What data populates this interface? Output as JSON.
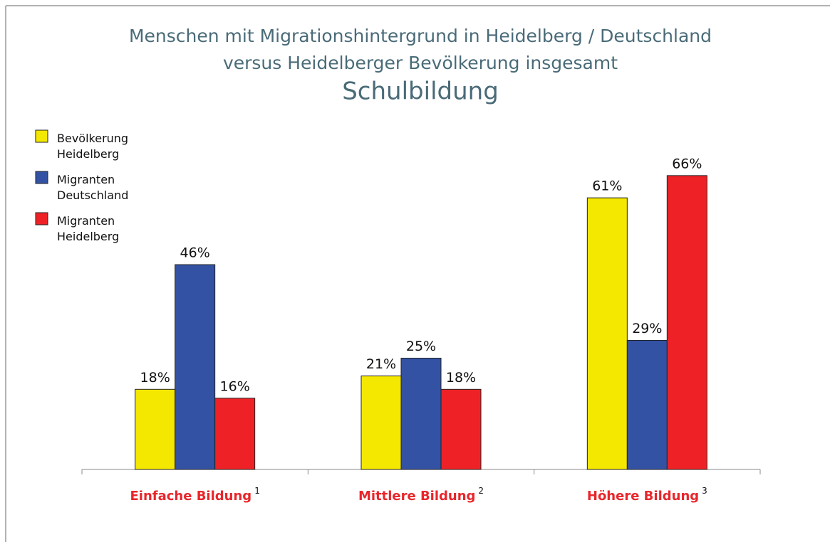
{
  "chart_data": {
    "type": "bar",
    "title": [
      "Menschen mit Migrationshintergrund in Heidelberg / Deutschland",
      "versus Heidelberger Bevölkerung insgesamt"
    ],
    "subtitle": "Schulbildung",
    "categories": [
      "Einfache Bildung",
      "Mittlere Bildung",
      "Höhere Bildung"
    ],
    "category_notes": [
      "1",
      "2",
      "3"
    ],
    "series": [
      {
        "name": "Bevölkerung Heidelberg",
        "color": "#f5e800",
        "values": [
          18,
          21,
          61
        ],
        "value_labels": [
          "18%",
          "21%",
          "61%"
        ]
      },
      {
        "name": "Migranten Deutschland",
        "color": "#3452a4",
        "values": [
          46,
          25,
          29
        ],
        "value_labels": [
          "46%",
          "25%",
          "29%"
        ]
      },
      {
        "name": "Migranten Heidelberg",
        "color": "#ee2226",
        "values": [
          16,
          18,
          66
        ],
        "value_labels": [
          "16%",
          "18%",
          "66%"
        ]
      }
    ],
    "ylim": [
      0,
      100
    ],
    "legend": "upper left"
  }
}
